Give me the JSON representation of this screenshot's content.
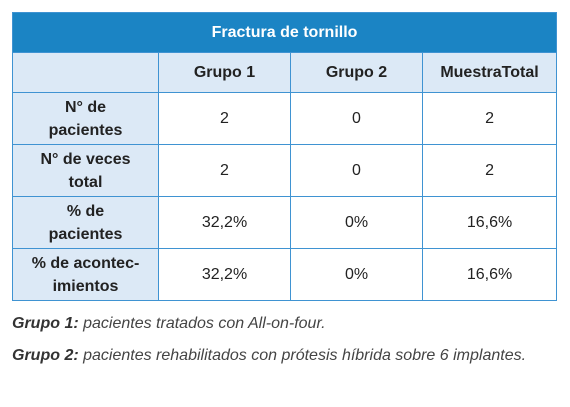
{
  "table": {
    "title": "Fractura de tornillo",
    "header": [
      "",
      "Grupo 1",
      "Grupo 2",
      "MuestraTotal"
    ],
    "rows": [
      [
        "N° de\npacientes",
        "2",
        "0",
        "2"
      ],
      [
        "N° de veces\ntotal",
        "2",
        "0",
        "2"
      ],
      [
        "% de\npacientes",
        "32,2%",
        "0%",
        "16,6%"
      ],
      [
        "% de acontec-\nimientos",
        "32,2%",
        "0%",
        "16,6%"
      ]
    ]
  },
  "notes": [
    {
      "label": "Grupo 1:",
      "text": " pacientes tratados con All-on-four."
    },
    {
      "label": "Grupo 2:",
      "text": " pacientes rehabilitados con prótesis híbrida sobre 6 implantes."
    }
  ]
}
